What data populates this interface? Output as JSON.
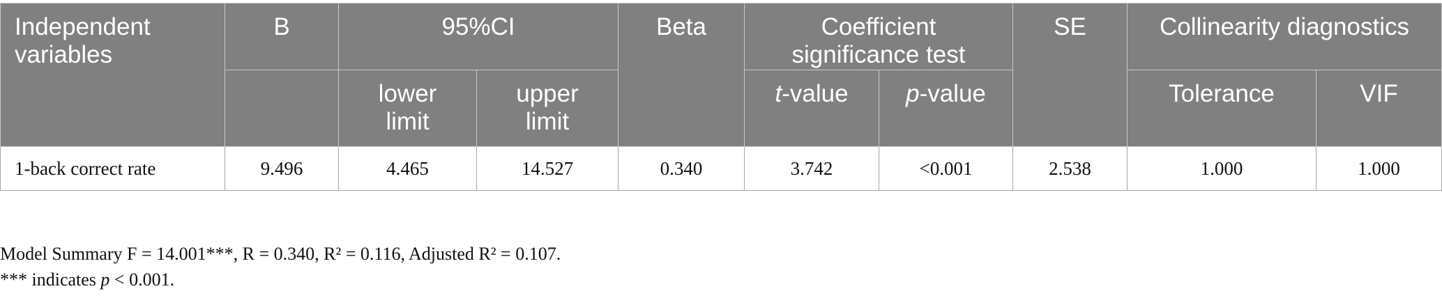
{
  "table": {
    "headers": {
      "independent_variables": "Independent variables",
      "b": "B",
      "ci": "95%CI",
      "lower": "lower limit",
      "upper": "upper limit",
      "beta": "Beta",
      "coef_test": "Coefficient significance test",
      "t_value": [
        "t",
        "-value"
      ],
      "p_value": [
        "p",
        "-value"
      ],
      "se": "SE",
      "collinearity": "Collinearity diagnostics",
      "tolerance": "Tolerance",
      "vif": "VIF"
    },
    "rows": [
      [
        "1-back correct rate",
        "9.496",
        "4.465",
        "14.527",
        "0.340",
        "3.742",
        "<0.001",
        "2.538",
        "1.000",
        "1.000"
      ]
    ]
  },
  "footnotes": [
    [
      "Model Summary F = 14.001***, R = 0.340, R² = 0.116, Adjusted R² = 0.107."
    ],
    [
      "*** indicates ",
      "p",
      " < 0.001."
    ]
  ]
}
